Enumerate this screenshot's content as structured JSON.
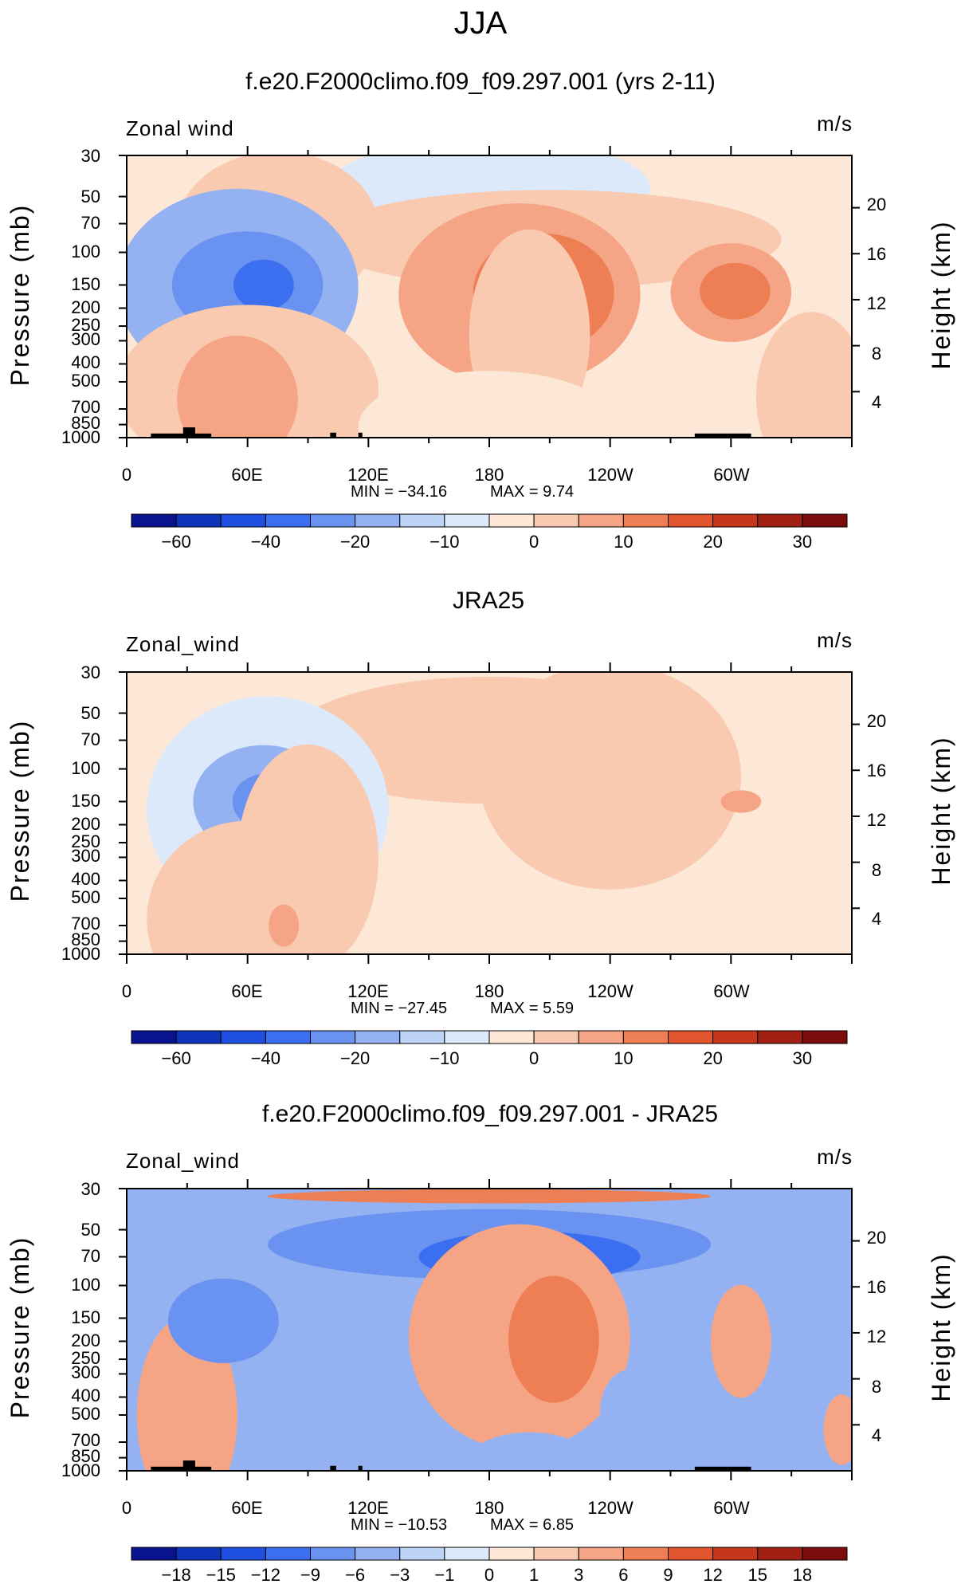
{
  "figure": {
    "title": "JJA"
  },
  "colors": {
    "scale": [
      "#08148f",
      "#0c33b8",
      "#1f4fe0",
      "#3c6ef0",
      "#6a92f0",
      "#94b2f2",
      "#bcd2f6",
      "#dce9fb",
      "#fde8d8",
      "#f9c9b0",
      "#f5a585",
      "#ee7f55",
      "#e0552d",
      "#c5371b",
      "#a11f13",
      "#7a0c0c"
    ],
    "land": "#000000"
  },
  "chart_data": [
    {
      "type": "heatmap",
      "title": "f.e20.F2000climo.f09_f09.297.001 (yrs 2-11)",
      "left_label": "Zonal wind",
      "units": "m/s",
      "ylabel": "Pressure (mb)",
      "ylabel_right": "Height (km)",
      "y_ticks": [
        "30",
        "50",
        "70",
        "100",
        "150",
        "200",
        "250",
        "300",
        "400",
        "500",
        "700",
        "850",
        "1000"
      ],
      "y_values": [
        30,
        50,
        70,
        100,
        150,
        200,
        250,
        300,
        400,
        500,
        700,
        850,
        1000
      ],
      "height_ticks": [
        "20",
        "16",
        "12",
        "8",
        "4"
      ],
      "height_values": [
        20,
        16,
        12,
        8,
        4
      ],
      "x_ticks": [
        "0",
        "60E",
        "120E",
        "180",
        "120W",
        "60W"
      ],
      "x_values": [
        0,
        60,
        120,
        180,
        240,
        300
      ],
      "xlim": [
        0,
        360
      ],
      "ylim": [
        1000,
        30
      ],
      "min_label": "MIN = −34.16",
      "max_label": "MAX = 9.74",
      "min": -34.16,
      "max": 9.74,
      "contour_levels": [
        -70,
        -60,
        -50,
        -40,
        -30,
        -20,
        -15,
        -10,
        -5,
        0,
        5,
        10,
        15,
        20,
        25,
        30,
        35
      ],
      "colorbar_labels": [
        "−60",
        "−40",
        "−20",
        "−10",
        "0",
        "10",
        "20",
        "30"
      ],
      "colorbar_label_levels": [
        -60,
        -40,
        -20,
        -10,
        0,
        10,
        20,
        30
      ],
      "features": [
        {
          "lon": 180,
          "p": 45,
          "w": 160,
          "h": 35,
          "v": -6
        },
        {
          "lon": 75,
          "p": 75,
          "w": 100,
          "h": 55,
          "v": 2
        },
        {
          "lon": 210,
          "p": 85,
          "w": 230,
          "h": 35,
          "v": 3
        },
        {
          "lon": 55,
          "p": 155,
          "w": 120,
          "h": 70,
          "v": -17
        },
        {
          "lon": 60,
          "p": 150,
          "w": 75,
          "h": 38,
          "v": -28
        },
        {
          "lon": 68,
          "p": 150,
          "w": 30,
          "h": 18,
          "v": -35
        },
        {
          "lon": 195,
          "p": 170,
          "w": 120,
          "h": 65,
          "v": 5
        },
        {
          "lon": 207,
          "p": 165,
          "w": 70,
          "h": 42,
          "v": 10
        },
        {
          "lon": 300,
          "p": 165,
          "w": 60,
          "h": 35,
          "v": 6
        },
        {
          "lon": 302,
          "p": 162,
          "w": 35,
          "h": 20,
          "v": 10
        },
        {
          "lon": 200,
          "p": 280,
          "w": 60,
          "h": 75,
          "v": 3
        },
        {
          "lon": 60,
          "p": 550,
          "w": 130,
          "h": 60,
          "v": 4
        },
        {
          "lon": 55,
          "p": 620,
          "w": 60,
          "h": 45,
          "v": 9
        },
        {
          "lon": 340,
          "p": 600,
          "w": 55,
          "h": 60,
          "v": 2
        },
        {
          "lon": 180,
          "p": 880,
          "w": 130,
          "h": 40,
          "v": -5
        }
      ],
      "background_value": -2,
      "land_blocks": [
        {
          "lon0": 12,
          "lon1": 42,
          "p0": 950
        },
        {
          "lon0": 28,
          "lon1": 34,
          "p0": 880
        },
        {
          "lon0": 101,
          "lon1": 104,
          "p0": 940
        },
        {
          "lon0": 115,
          "lon1": 117,
          "p0": 940
        },
        {
          "lon0": 282,
          "lon1": 310,
          "p0": 950
        }
      ]
    },
    {
      "type": "heatmap",
      "title": "JRA25",
      "left_label": "Zonal_wind",
      "units": "m/s",
      "ylabel": "Pressure (mb)",
      "ylabel_right": "Height (km)",
      "y_ticks": [
        "30",
        "50",
        "70",
        "100",
        "150",
        "200",
        "250",
        "300",
        "400",
        "500",
        "700",
        "850",
        "1000"
      ],
      "y_values": [
        30,
        50,
        70,
        100,
        150,
        200,
        250,
        300,
        400,
        500,
        700,
        850,
        1000
      ],
      "height_ticks": [
        "20",
        "16",
        "12",
        "8",
        "4"
      ],
      "height_values": [
        20,
        16,
        12,
        8,
        4
      ],
      "x_ticks": [
        "0",
        "60E",
        "120E",
        "180",
        "120W",
        "60W"
      ],
      "x_values": [
        0,
        60,
        120,
        180,
        240,
        300
      ],
      "xlim": [
        0,
        360
      ],
      "ylim": [
        1000,
        30
      ],
      "min_label": "MIN = −27.45",
      "max_label": "MAX = 5.59",
      "min": -27.45,
      "max": 5.59,
      "contour_levels": [
        -70,
        -60,
        -50,
        -40,
        -30,
        -20,
        -15,
        -10,
        -5,
        0,
        5,
        10,
        15,
        20,
        25,
        30,
        35
      ],
      "colorbar_labels": [
        "−60",
        "−40",
        "−20",
        "−10",
        "0",
        "10",
        "20",
        "30"
      ],
      "colorbar_label_levels": [
        -60,
        -40,
        -20,
        -10,
        0,
        10,
        20,
        30
      ],
      "features": [
        {
          "lon": 180,
          "p": 34,
          "w": 200,
          "h": 8,
          "v": -4
        },
        {
          "lon": 180,
          "p": 70,
          "w": 200,
          "h": 45,
          "v": 4
        },
        {
          "lon": 240,
          "p": 110,
          "w": 130,
          "h": 80,
          "v": 4
        },
        {
          "lon": 70,
          "p": 165,
          "w": 120,
          "h": 80,
          "v": -10
        },
        {
          "lon": 68,
          "p": 150,
          "w": 70,
          "h": 40,
          "v": -20
        },
        {
          "lon": 70,
          "p": 150,
          "w": 35,
          "h": 20,
          "v": -25
        },
        {
          "lon": 305,
          "p": 150,
          "w": 20,
          "h": 8,
          "v": 7
        },
        {
          "lon": 90,
          "p": 300,
          "w": 70,
          "h": 80,
          "v": 2
        },
        {
          "lon": 60,
          "p": 650,
          "w": 100,
          "h": 70,
          "v": 4
        },
        {
          "lon": 78,
          "p": 700,
          "w": 15,
          "h": 15,
          "v": 7
        }
      ],
      "background_value": -2,
      "land_blocks": []
    },
    {
      "type": "heatmap",
      "title": "f.e20.F2000climo.f09_f09.297.001 - JRA25",
      "left_label": "Zonal_wind",
      "units": "m/s",
      "ylabel": "Pressure (mb)",
      "ylabel_right": "Height (km)",
      "y_ticks": [
        "30",
        "50",
        "70",
        "100",
        "150",
        "200",
        "250",
        "300",
        "400",
        "500",
        "700",
        "850",
        "1000"
      ],
      "y_values": [
        30,
        50,
        70,
        100,
        150,
        200,
        250,
        300,
        400,
        500,
        700,
        850,
        1000
      ],
      "height_ticks": [
        "20",
        "16",
        "12",
        "8",
        "4"
      ],
      "height_values": [
        20,
        16,
        12,
        8,
        4
      ],
      "x_ticks": [
        "0",
        "60E",
        "120E",
        "180",
        "120W",
        "60W"
      ],
      "x_values": [
        0,
        60,
        120,
        180,
        240,
        300
      ],
      "xlim": [
        0,
        360
      ],
      "ylim": [
        1000,
        30
      ],
      "min_label": "MIN = −10.53",
      "max_label": "MAX = 6.85",
      "min": -10.53,
      "max": 6.85,
      "contour_levels": [
        -21,
        -18,
        -15,
        -12,
        -9,
        -6,
        -3,
        -1,
        0,
        1,
        3,
        6,
        9,
        12,
        15,
        18,
        21
      ],
      "colorbar_labels": [
        "−18",
        "−15",
        "−12",
        "−9",
        "−6",
        "−3",
        "−1",
        "0",
        "1",
        "3",
        "6",
        "9",
        "12",
        "15",
        "18"
      ],
      "colorbar_label_levels": [
        -18,
        -15,
        -12,
        -9,
        -6,
        -3,
        -1,
        0,
        1,
        3,
        6,
        9,
        12,
        15,
        18
      ],
      "features": [
        {
          "lon": 180,
          "p": 33,
          "w": 220,
          "h": 5,
          "v": 6
        },
        {
          "lon": 180,
          "p": 60,
          "w": 220,
          "h": 25,
          "v": -9
        },
        {
          "lon": 200,
          "p": 70,
          "w": 110,
          "h": 18,
          "v": -10
        },
        {
          "lon": 195,
          "p": 190,
          "w": 110,
          "h": 80,
          "v": 4
        },
        {
          "lon": 212,
          "p": 195,
          "w": 45,
          "h": 45,
          "v": 7
        },
        {
          "lon": 305,
          "p": 200,
          "w": 30,
          "h": 40,
          "v": 4
        },
        {
          "lon": 30,
          "p": 500,
          "w": 50,
          "h": 70,
          "v": 3
        },
        {
          "lon": 48,
          "p": 155,
          "w": 55,
          "h": 30,
          "v": -9
        },
        {
          "lon": 250,
          "p": 480,
          "w": 30,
          "h": 30,
          "v": -5
        },
        {
          "lon": 200,
          "p": 880,
          "w": 60,
          "h": 20,
          "v": -5
        },
        {
          "lon": 355,
          "p": 600,
          "w": 18,
          "h": 25,
          "v": 4
        }
      ],
      "background_value": -4,
      "land_blocks": [
        {
          "lon0": 12,
          "lon1": 42,
          "p0": 950
        },
        {
          "lon0": 28,
          "lon1": 34,
          "p0": 880
        },
        {
          "lon0": 101,
          "lon1": 104,
          "p0": 940
        },
        {
          "lon0": 115,
          "lon1": 117,
          "p0": 940
        },
        {
          "lon0": 282,
          "lon1": 310,
          "p0": 950
        }
      ]
    }
  ]
}
